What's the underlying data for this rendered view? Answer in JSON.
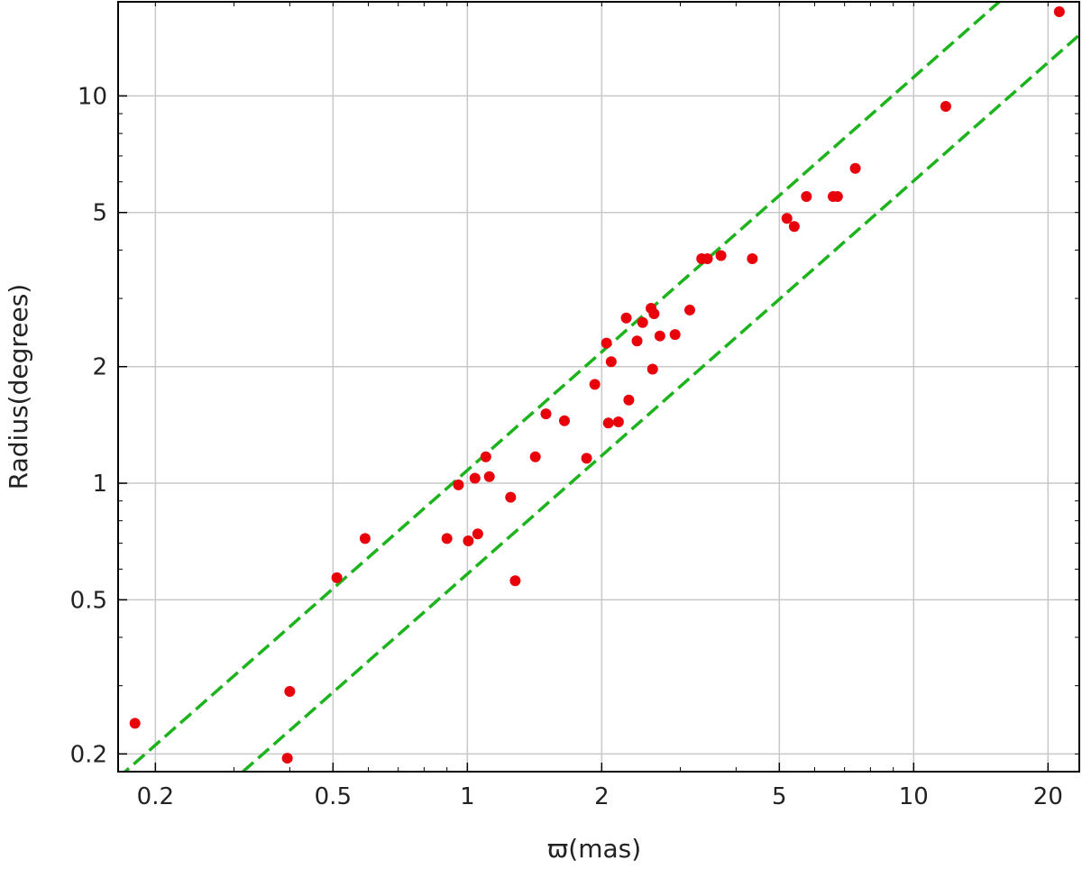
{
  "chart_data": {
    "type": "scatter",
    "xlabel": "ϖ(mas)",
    "ylabel": "Radius(degrees)",
    "xscale": "log",
    "yscale": "log",
    "xlim": [
      0.165,
      23.5
    ],
    "ylim": [
      0.18,
      17.5
    ],
    "grid": true,
    "xticks": [
      {
        "value": 0.2,
        "label": "0.2"
      },
      {
        "value": 0.5,
        "label": "0.5"
      },
      {
        "value": 1,
        "label": "1"
      },
      {
        "value": 2,
        "label": "2"
      },
      {
        "value": 5,
        "label": "5"
      },
      {
        "value": 10,
        "label": "10"
      },
      {
        "value": 20,
        "label": "20"
      }
    ],
    "yticks": [
      {
        "value": 0.2,
        "label": "0.2"
      },
      {
        "value": 0.5,
        "label": "0.5"
      },
      {
        "value": 1,
        "label": "1"
      },
      {
        "value": 2,
        "label": "2"
      },
      {
        "value": 5,
        "label": "5"
      },
      {
        "value": 10,
        "label": "10"
      }
    ],
    "points_color": "#e8000b",
    "points": [
      [
        0.18,
        0.24
      ],
      [
        0.4,
        0.29
      ],
      [
        0.395,
        0.195
      ],
      [
        0.51,
        0.57
      ],
      [
        0.59,
        0.72
      ],
      [
        0.9,
        0.72
      ],
      [
        0.955,
        0.99
      ],
      [
        1.005,
        0.71
      ],
      [
        1.04,
        1.03
      ],
      [
        1.055,
        0.74
      ],
      [
        1.1,
        1.17
      ],
      [
        1.12,
        1.04
      ],
      [
        1.25,
        0.92
      ],
      [
        1.28,
        0.56
      ],
      [
        1.42,
        1.17
      ],
      [
        1.5,
        1.51
      ],
      [
        1.65,
        1.45
      ],
      [
        1.85,
        1.16
      ],
      [
        1.93,
        1.8
      ],
      [
        2.05,
        2.3
      ],
      [
        2.07,
        1.43
      ],
      [
        2.1,
        2.06
      ],
      [
        2.18,
        1.44
      ],
      [
        2.27,
        2.67
      ],
      [
        2.3,
        1.64
      ],
      [
        2.4,
        2.33
      ],
      [
        2.47,
        2.6
      ],
      [
        2.58,
        2.83
      ],
      [
        2.6,
        1.97
      ],
      [
        2.62,
        2.74
      ],
      [
        2.7,
        2.4
      ],
      [
        2.92,
        2.42
      ],
      [
        3.15,
        2.8
      ],
      [
        3.35,
        3.8
      ],
      [
        3.45,
        3.8
      ],
      [
        3.7,
        3.87
      ],
      [
        4.35,
        3.8
      ],
      [
        5.2,
        4.83
      ],
      [
        5.4,
        4.6
      ],
      [
        5.75,
        5.5
      ],
      [
        6.6,
        5.5
      ],
      [
        6.75,
        5.5
      ],
      [
        7.4,
        6.5
      ],
      [
        11.8,
        9.4
      ],
      [
        21.2,
        16.5
      ]
    ],
    "lines_color": "#1db31d",
    "lines": [
      {
        "style": "dashed",
        "slope_loglog": 1.015,
        "anchor_x": 1,
        "anchor_y": 1.08
      },
      {
        "style": "dashed",
        "slope_loglog": 1.015,
        "anchor_x": 1,
        "anchor_y": 0.583
      }
    ]
  }
}
